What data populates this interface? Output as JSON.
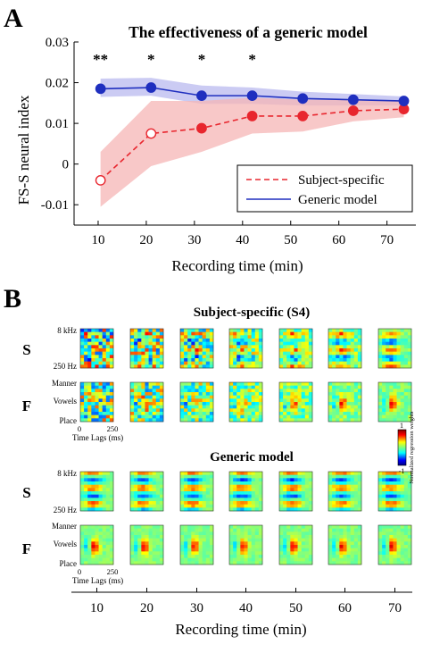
{
  "panel_a_letter": "A",
  "panel_b_letter": "B",
  "colors": {
    "generic_line": "#1f2fbf",
    "generic_band": "#b9b9ef",
    "subject_line": "#e8262e",
    "subject_band": "#f6b6b6",
    "axis": "#000000"
  },
  "chart_data": {
    "type": "line",
    "title": "The effectiveness of a generic model",
    "xlabel": "Recording time (min)",
    "ylabel": "FS-S neural index",
    "xlim": [
      5,
      76
    ],
    "ylim": [
      -0.015,
      0.03
    ],
    "xticks": [
      10,
      20,
      30,
      40,
      50,
      60,
      70
    ],
    "xtick_labels": [
      "10",
      "20",
      "30",
      "40",
      "50",
      "60",
      "70"
    ],
    "yticks": [
      -0.01,
      0,
      0.01,
      0.02,
      0.03
    ],
    "ytick_labels": [
      "-0.01",
      "0",
      "0.01",
      "0.02",
      "0.03"
    ],
    "grid": false,
    "legend_position": "lower-right",
    "x": [
      10.5,
      21,
      31.5,
      42,
      52.5,
      63,
      73.5
    ],
    "series": [
      {
        "name": "Subject-specific",
        "style": "dashed",
        "values": [
          -0.004,
          0.0075,
          0.0088,
          0.0118,
          0.0118,
          0.0131,
          0.0135
        ],
        "band_upper": [
          0.003,
          0.0155,
          0.0155,
          0.0163,
          0.0158,
          0.0158,
          0.0154
        ],
        "band_lower": [
          -0.0105,
          -0.0005,
          0.003,
          0.0075,
          0.008,
          0.0105,
          0.0115
        ],
        "marker_fill": [
          "#ffffff",
          "#ffffff",
          "#e8262e",
          "#e8262e",
          "#e8262e",
          "#e8262e",
          "#e8262e"
        ]
      },
      {
        "name": "Generic model",
        "style": "solid",
        "values": [
          0.0185,
          0.0188,
          0.0168,
          0.0168,
          0.0161,
          0.0158,
          0.0155
        ],
        "band_upper": [
          0.021,
          0.0212,
          0.0193,
          0.0188,
          0.0178,
          0.0172,
          0.0166
        ],
        "band_lower": [
          0.0165,
          0.0168,
          0.0148,
          0.0148,
          0.0144,
          0.0144,
          0.0144
        ]
      }
    ],
    "significance": [
      "**",
      "*",
      "*",
      "*",
      "",
      "",
      ""
    ]
  },
  "panel_b": {
    "subject_title": "Subject-specific (S4)",
    "generic_title": "Generic model",
    "row_s_label": "S",
    "row_f_label": "F",
    "s_top_label": "8 kHz",
    "s_bottom_label": "250 Hz",
    "f_top_label": "Manner",
    "f_mid_label": "Vowels",
    "f_bottom_label": "Place",
    "lag_start": "0",
    "lag_end": "250",
    "lag_axis_label": "Time Lags (ms)",
    "colorbar_max": "1",
    "colorbar_min": "-1",
    "colorbar_label": "Normalized regression weights",
    "xtick_labels": [
      "10",
      "20",
      "30",
      "40",
      "50",
      "60",
      "70"
    ],
    "xlabel": "Recording time (min)"
  }
}
